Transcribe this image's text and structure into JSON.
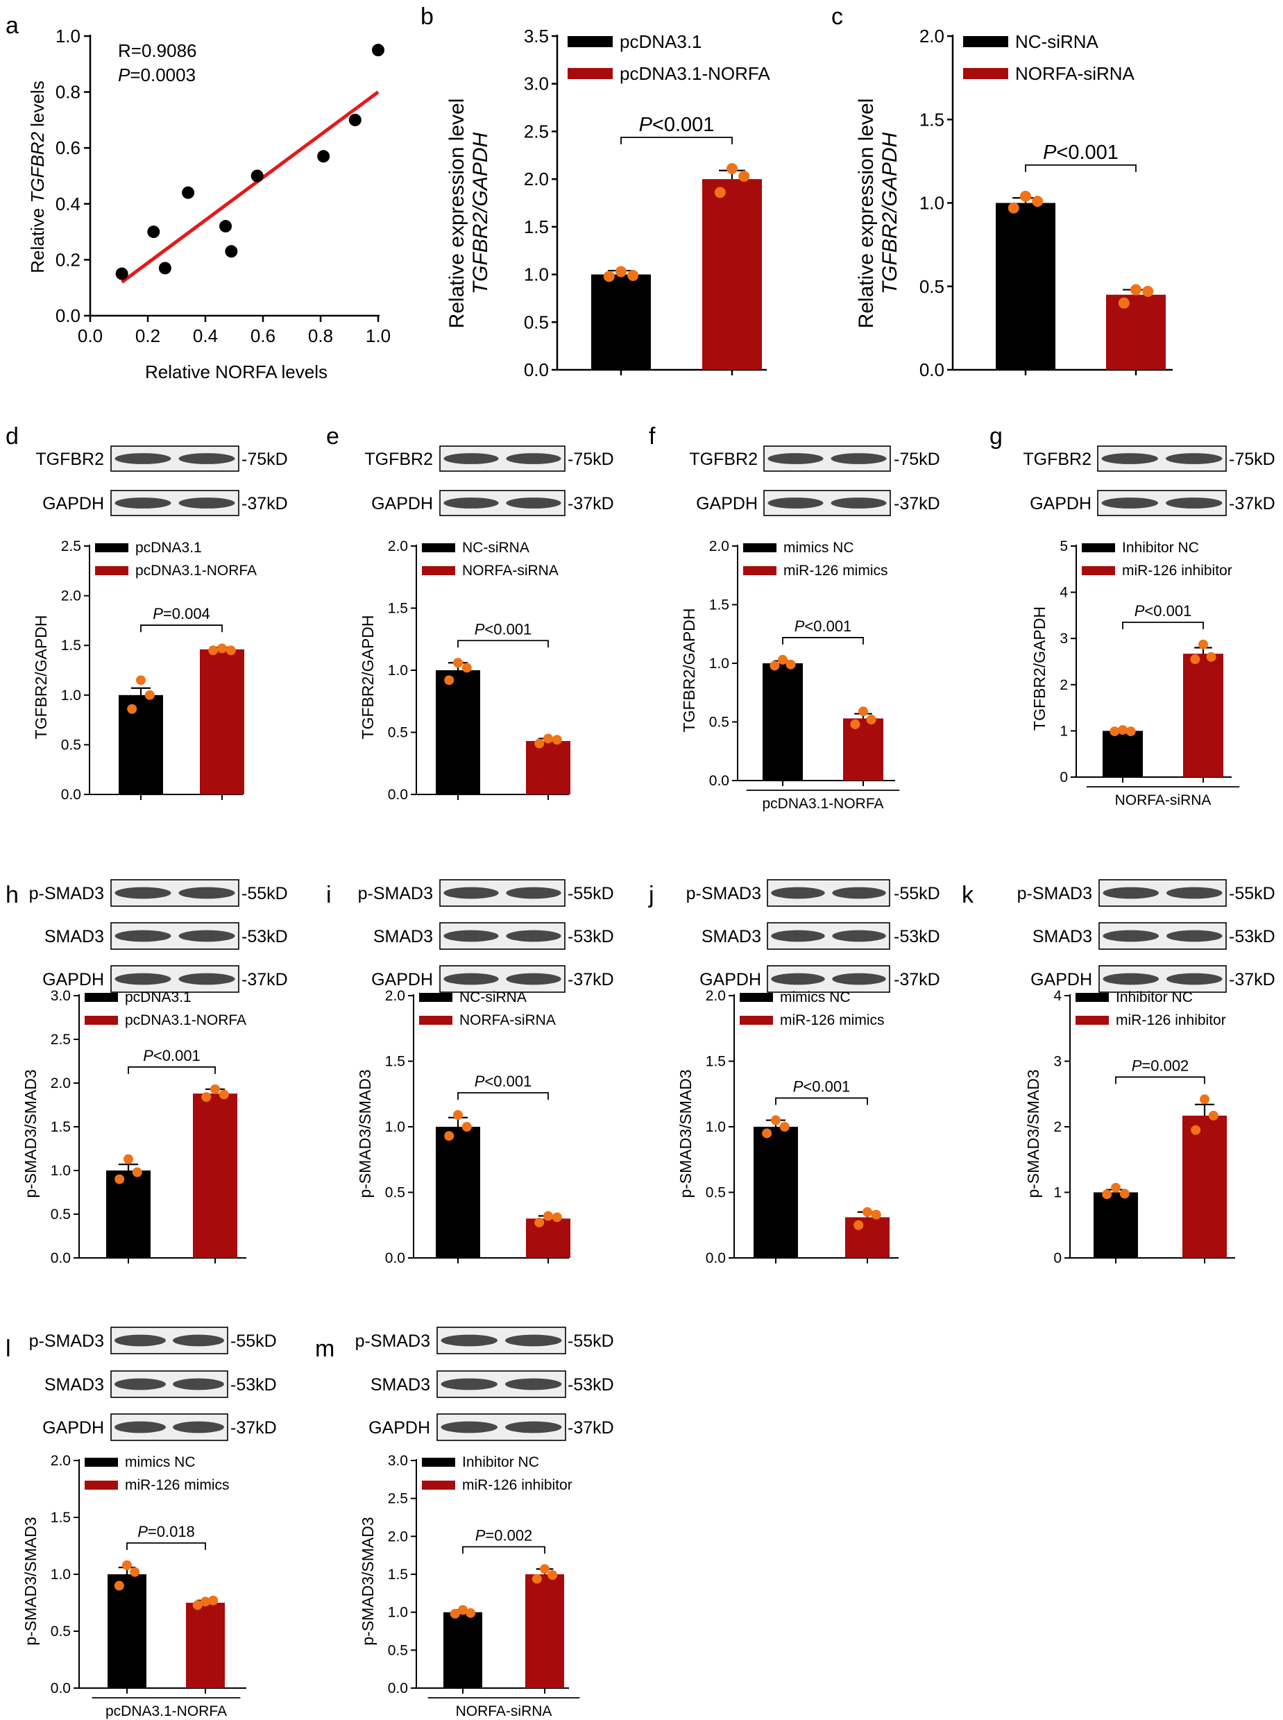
{
  "colors": {
    "black_bar": "#000000",
    "red_bar": "#a80b0b",
    "dot": "#f07318",
    "fit_line": "#e41a1a"
  },
  "chart_data": [
    {
      "id": "a",
      "panel_label": "a",
      "type": "scatter",
      "stats": [
        "R=0.9086",
        "=0.0003"
      ],
      "p_prefix": "P",
      "x": [
        0.11,
        0.22,
        0.26,
        0.34,
        0.47,
        0.49,
        0.58,
        0.81,
        0.92,
        1.0
      ],
      "y": [
        0.15,
        0.3,
        0.17,
        0.44,
        0.32,
        0.23,
        0.5,
        0.57,
        0.7,
        0.95
      ],
      "fit": [
        [
          0.11,
          0.12
        ],
        [
          1.0,
          0.8
        ]
      ],
      "xticks": [
        "0.0",
        "0.2",
        "0.4",
        "0.6",
        "0.8",
        "1.0"
      ],
      "yticks": [
        "0.0",
        "0.2",
        "0.4",
        "0.6",
        "0.8",
        "1.0"
      ],
      "xlim": [
        0,
        1
      ],
      "ylim": [
        0,
        1
      ],
      "xlabel": "Relative NORFA levels",
      "ylabel_pre": "Relative ",
      "ylabel_it": "TGFBR2",
      "ylabel_post": " levels"
    },
    {
      "id": "b",
      "panel_label": "b",
      "type": "bar",
      "ylim": [
        0,
        3.5
      ],
      "yticks": [
        "0.0",
        "0.5",
        "1.0",
        "1.5",
        "2.0",
        "2.5",
        "3.0",
        "3.5"
      ],
      "ylabel1": "Relative expression level",
      "ylabel2": "TGFBR2/GAPDH",
      "legend": [
        "pcDNA3.1",
        "pcDNA3.1-NORFA"
      ],
      "values": [
        1.0,
        2.0
      ],
      "errors": [
        0.04,
        0.09
      ],
      "points": [
        [
          1.03,
          0.98,
          0.99
        ],
        [
          2.11,
          1.86,
          2.03
        ]
      ],
      "p_prefix": "P",
      "p_text": "<0.001"
    },
    {
      "id": "c",
      "panel_label": "c",
      "type": "bar",
      "ylim": [
        0,
        2.0
      ],
      "yticks": [
        "0.0",
        "0.5",
        "1.0",
        "1.5",
        "2.0"
      ],
      "ylabel1": "Relative expression level",
      "ylabel2": "TGFBR2/GAPDH",
      "legend": [
        "NC-siRNA",
        "NORFA-siRNA"
      ],
      "values": [
        1.0,
        0.45
      ],
      "errors": [
        0.03,
        0.03
      ],
      "points": [
        [
          1.04,
          0.97,
          1.01
        ],
        [
          0.48,
          0.4,
          0.47
        ]
      ],
      "p_prefix": "P",
      "p_text": "<0.001"
    },
    {
      "id": "d",
      "panel_label": "d",
      "type": "bar",
      "blots": [
        {
          "name": "TGFBR2",
          "kd": "-75kD"
        },
        {
          "name": "GAPDH",
          "kd": "-37kD"
        }
      ],
      "ylim": [
        0,
        2.5
      ],
      "yticks": [
        "0.0",
        "0.5",
        "1.0",
        "1.5",
        "2.0",
        "2.5"
      ],
      "ylabel": "TGFBR2/GAPDH",
      "legend": [
        "pcDNA3.1",
        "pcDNA3.1-NORFA"
      ],
      "values": [
        1.0,
        1.46
      ],
      "errors": [
        0.07,
        0.02
      ],
      "points": [
        [
          1.15,
          0.86,
          1.0
        ],
        [
          1.47,
          1.45,
          1.45
        ]
      ],
      "p_prefix": "P",
      "p_text": "=0.004"
    },
    {
      "id": "e",
      "panel_label": "e",
      "type": "bar",
      "blots": [
        {
          "name": "TGFBR2",
          "kd": "-75kD"
        },
        {
          "name": "GAPDH",
          "kd": "-37kD"
        }
      ],
      "ylim": [
        0,
        2.0
      ],
      "yticks": [
        "0.0",
        "0.5",
        "1.0",
        "1.5",
        "2.0"
      ],
      "ylabel": "TGFBR2/GAPDH",
      "legend": [
        "NC-siRNA",
        "NORFA-siRNA"
      ],
      "values": [
        1.0,
        0.43
      ],
      "errors": [
        0.06,
        0.02
      ],
      "points": [
        [
          1.06,
          0.92,
          1.02
        ],
        [
          0.45,
          0.41,
          0.44
        ]
      ],
      "p_prefix": "P",
      "p_text": "<0.001"
    },
    {
      "id": "f",
      "panel_label": "f",
      "type": "bar",
      "blots": [
        {
          "name": "TGFBR2",
          "kd": "-75kD"
        },
        {
          "name": "GAPDH",
          "kd": "-37kD"
        }
      ],
      "ylim": [
        0,
        2.0
      ],
      "yticks": [
        "0.0",
        "0.5",
        "1.0",
        "1.5",
        "2.0"
      ],
      "ylabel": "TGFBR2/GAPDH",
      "legend": [
        "mimics NC",
        "miR-126 mimics"
      ],
      "values": [
        1.0,
        0.53
      ],
      "errors": [
        0.02,
        0.04
      ],
      "points": [
        [
          1.03,
          0.98,
          0.99
        ],
        [
          0.59,
          0.48,
          0.52
        ]
      ],
      "p_prefix": "P",
      "p_text": "<0.001",
      "underline": "pcDNA3.1-NORFA"
    },
    {
      "id": "g",
      "panel_label": "g",
      "type": "bar",
      "blots": [
        {
          "name": "TGFBR2",
          "kd": "-75kD"
        },
        {
          "name": "GAPDH",
          "kd": "-37kD"
        }
      ],
      "ylim": [
        0,
        5
      ],
      "yticks": [
        "0",
        "1",
        "2",
        "3",
        "4",
        "5"
      ],
      "ylabel": "TGFBR2/GAPDH",
      "legend": [
        "Inhibitor NC",
        "miR-126 inhibitor"
      ],
      "values": [
        1.0,
        2.67
      ],
      "errors": [
        0.02,
        0.13
      ],
      "points": [
        [
          1.02,
          0.99,
          0.99
        ],
        [
          2.87,
          2.55,
          2.6
        ]
      ],
      "p_prefix": "P",
      "p_text": "<0.001",
      "underline": "NORFA-siRNA"
    },
    {
      "id": "h",
      "panel_label": "h",
      "type": "bar",
      "blots": [
        {
          "name": "p-SMAD3",
          "kd": "-55kD"
        },
        {
          "name": "SMAD3",
          "kd": "-53kD"
        },
        {
          "name": "GAPDH",
          "kd": "-37kD"
        }
      ],
      "ylim": [
        0,
        3.0
      ],
      "yticks": [
        "0.0",
        "0.5",
        "1.0",
        "1.5",
        "2.0",
        "2.5",
        "3.0"
      ],
      "ylabel": "p-SMAD3/SMAD3",
      "legend": [
        "pcDNA3.1",
        "pcDNA3.1-NORFA"
      ],
      "values": [
        1.0,
        1.88
      ],
      "errors": [
        0.07,
        0.05
      ],
      "points": [
        [
          1.13,
          0.9,
          0.98
        ],
        [
          1.93,
          1.84,
          1.87
        ]
      ],
      "p_prefix": "P",
      "p_text": "<0.001"
    },
    {
      "id": "i",
      "panel_label": "i",
      "type": "bar",
      "blots": [
        {
          "name": "p-SMAD3",
          "kd": "-55kD"
        },
        {
          "name": "SMAD3",
          "kd": "-53kD"
        },
        {
          "name": "GAPDH",
          "kd": "-37kD"
        }
      ],
      "ylim": [
        0,
        2.0
      ],
      "yticks": [
        "0.0",
        "0.5",
        "1.0",
        "1.5",
        "2.0"
      ],
      "ylabel": "p-SMAD3/SMAD3",
      "legend": [
        "NC-siRNA",
        "NORFA-siRNA"
      ],
      "values": [
        1.0,
        0.3
      ],
      "errors": [
        0.07,
        0.02
      ],
      "points": [
        [
          1.09,
          0.93,
          1.0
        ],
        [
          0.32,
          0.27,
          0.31
        ]
      ],
      "p_prefix": "P",
      "p_text": "<0.001"
    },
    {
      "id": "j",
      "panel_label": "j",
      "type": "bar",
      "blots": [
        {
          "name": "p-SMAD3",
          "kd": "-55kD"
        },
        {
          "name": "SMAD3",
          "kd": "-53kD"
        },
        {
          "name": "GAPDH",
          "kd": "-37kD"
        }
      ],
      "ylim": [
        0,
        2.0
      ],
      "yticks": [
        "0.0",
        "0.5",
        "1.0",
        "1.5",
        "2.0"
      ],
      "ylabel": "p-SMAD3/SMAD3",
      "legend": [
        "mimics NC",
        "miR-126 mimics"
      ],
      "values": [
        1.0,
        0.31
      ],
      "errors": [
        0.05,
        0.04
      ],
      "points": [
        [
          1.05,
          0.95,
          1.0
        ],
        [
          0.35,
          0.25,
          0.33
        ]
      ],
      "p_prefix": "P",
      "p_text": "<0.001"
    },
    {
      "id": "k",
      "panel_label": "k",
      "type": "bar",
      "blots": [
        {
          "name": "p-SMAD3",
          "kd": "-55kD"
        },
        {
          "name": "SMAD3",
          "kd": "-53kD"
        },
        {
          "name": "GAPDH",
          "kd": "-37kD"
        }
      ],
      "ylim": [
        0,
        4
      ],
      "yticks": [
        "0",
        "1",
        "2",
        "3",
        "4"
      ],
      "ylabel": "p-SMAD3/SMAD3",
      "legend": [
        "Inhibitor NC",
        "miR-126 inhibitor"
      ],
      "values": [
        1.0,
        2.17
      ],
      "errors": [
        0.04,
        0.17
      ],
      "points": [
        [
          1.07,
          0.97,
          0.98
        ],
        [
          2.42,
          1.95,
          2.17
        ]
      ],
      "p_prefix": "P",
      "p_text": "=0.002"
    },
    {
      "id": "l",
      "panel_label": "l",
      "type": "bar",
      "blots": [
        {
          "name": "p-SMAD3",
          "kd": "-55kD"
        },
        {
          "name": "SMAD3",
          "kd": "-53kD"
        },
        {
          "name": "GAPDH",
          "kd": "-37kD"
        }
      ],
      "ylim": [
        0,
        2.0
      ],
      "yticks": [
        "0.0",
        "0.5",
        "1.0",
        "1.5",
        "2.0"
      ],
      "ylabel": "p-SMAD3/SMAD3",
      "legend": [
        "mimics NC",
        "miR-126 mimics"
      ],
      "values": [
        1.0,
        0.75
      ],
      "errors": [
        0.06,
        0.02
      ],
      "points": [
        [
          1.08,
          0.9,
          1.02
        ],
        [
          0.76,
          0.73,
          0.77
        ]
      ],
      "p_prefix": "P",
      "p_text": "=0.018",
      "underline": "pcDNA3.1-NORFA"
    },
    {
      "id": "m",
      "panel_label": "m",
      "type": "bar",
      "blots": [
        {
          "name": "p-SMAD3",
          "kd": "-55kD"
        },
        {
          "name": "SMAD3",
          "kd": "-53kD"
        },
        {
          "name": "GAPDH",
          "kd": "-37kD"
        }
      ],
      "ylim": [
        0,
        3.0
      ],
      "yticks": [
        "0.0",
        "0.5",
        "1.0",
        "1.5",
        "2.0",
        "2.5",
        "3.0"
      ],
      "ylabel": "p-SMAD3/SMAD3",
      "legend": [
        "Inhibitor NC",
        "miR-126 inhibitor"
      ],
      "values": [
        1.0,
        1.5
      ],
      "errors": [
        0.03,
        0.07
      ],
      "points": [
        [
          1.03,
          0.98,
          0.99
        ],
        [
          1.57,
          1.44,
          1.49
        ]
      ],
      "p_prefix": "P",
      "p_text": "=0.002",
      "underline": "NORFA-siRNA"
    }
  ]
}
